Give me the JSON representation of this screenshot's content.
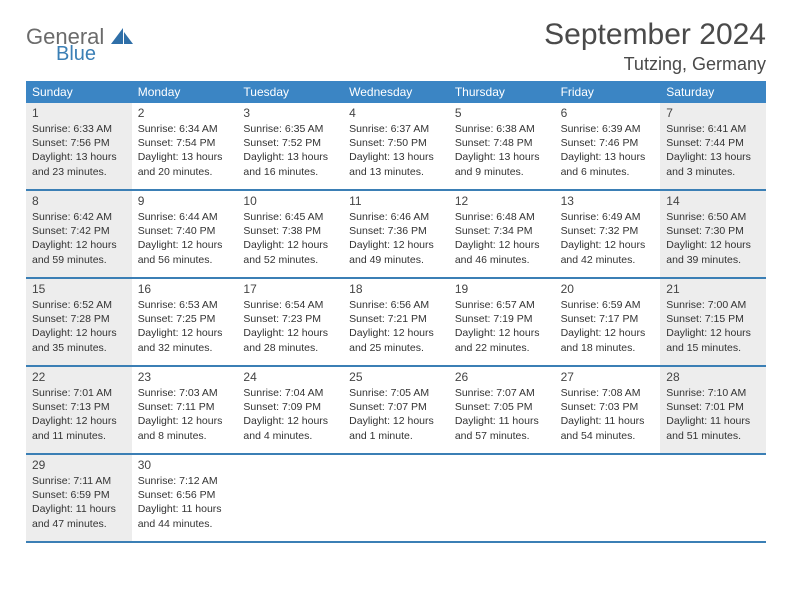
{
  "brand": {
    "general": "General",
    "blue": "Blue"
  },
  "title": {
    "month": "September 2024",
    "location": "Tutzing, Germany"
  },
  "colors": {
    "header_bg": "#3b85c4",
    "rule": "#3b7fb5",
    "shade": "#ededed",
    "text": "#333333"
  },
  "weekdays": [
    "Sunday",
    "Monday",
    "Tuesday",
    "Wednesday",
    "Thursday",
    "Friday",
    "Saturday"
  ],
  "weeks": [
    [
      {
        "day": "1",
        "shade": true,
        "sunrise": "Sunrise: 6:33 AM",
        "sunset": "Sunset: 7:56 PM",
        "daylight": "Daylight: 13 hours and 23 minutes."
      },
      {
        "day": "2",
        "shade": false,
        "sunrise": "Sunrise: 6:34 AM",
        "sunset": "Sunset: 7:54 PM",
        "daylight": "Daylight: 13 hours and 20 minutes."
      },
      {
        "day": "3",
        "shade": false,
        "sunrise": "Sunrise: 6:35 AM",
        "sunset": "Sunset: 7:52 PM",
        "daylight": "Daylight: 13 hours and 16 minutes."
      },
      {
        "day": "4",
        "shade": false,
        "sunrise": "Sunrise: 6:37 AM",
        "sunset": "Sunset: 7:50 PM",
        "daylight": "Daylight: 13 hours and 13 minutes."
      },
      {
        "day": "5",
        "shade": false,
        "sunrise": "Sunrise: 6:38 AM",
        "sunset": "Sunset: 7:48 PM",
        "daylight": "Daylight: 13 hours and 9 minutes."
      },
      {
        "day": "6",
        "shade": false,
        "sunrise": "Sunrise: 6:39 AM",
        "sunset": "Sunset: 7:46 PM",
        "daylight": "Daylight: 13 hours and 6 minutes."
      },
      {
        "day": "7",
        "shade": true,
        "sunrise": "Sunrise: 6:41 AM",
        "sunset": "Sunset: 7:44 PM",
        "daylight": "Daylight: 13 hours and 3 minutes."
      }
    ],
    [
      {
        "day": "8",
        "shade": true,
        "sunrise": "Sunrise: 6:42 AM",
        "sunset": "Sunset: 7:42 PM",
        "daylight": "Daylight: 12 hours and 59 minutes."
      },
      {
        "day": "9",
        "shade": false,
        "sunrise": "Sunrise: 6:44 AM",
        "sunset": "Sunset: 7:40 PM",
        "daylight": "Daylight: 12 hours and 56 minutes."
      },
      {
        "day": "10",
        "shade": false,
        "sunrise": "Sunrise: 6:45 AM",
        "sunset": "Sunset: 7:38 PM",
        "daylight": "Daylight: 12 hours and 52 minutes."
      },
      {
        "day": "11",
        "shade": false,
        "sunrise": "Sunrise: 6:46 AM",
        "sunset": "Sunset: 7:36 PM",
        "daylight": "Daylight: 12 hours and 49 minutes."
      },
      {
        "day": "12",
        "shade": false,
        "sunrise": "Sunrise: 6:48 AM",
        "sunset": "Sunset: 7:34 PM",
        "daylight": "Daylight: 12 hours and 46 minutes."
      },
      {
        "day": "13",
        "shade": false,
        "sunrise": "Sunrise: 6:49 AM",
        "sunset": "Sunset: 7:32 PM",
        "daylight": "Daylight: 12 hours and 42 minutes."
      },
      {
        "day": "14",
        "shade": true,
        "sunrise": "Sunrise: 6:50 AM",
        "sunset": "Sunset: 7:30 PM",
        "daylight": "Daylight: 12 hours and 39 minutes."
      }
    ],
    [
      {
        "day": "15",
        "shade": true,
        "sunrise": "Sunrise: 6:52 AM",
        "sunset": "Sunset: 7:28 PM",
        "daylight": "Daylight: 12 hours and 35 minutes."
      },
      {
        "day": "16",
        "shade": false,
        "sunrise": "Sunrise: 6:53 AM",
        "sunset": "Sunset: 7:25 PM",
        "daylight": "Daylight: 12 hours and 32 minutes."
      },
      {
        "day": "17",
        "shade": false,
        "sunrise": "Sunrise: 6:54 AM",
        "sunset": "Sunset: 7:23 PM",
        "daylight": "Daylight: 12 hours and 28 minutes."
      },
      {
        "day": "18",
        "shade": false,
        "sunrise": "Sunrise: 6:56 AM",
        "sunset": "Sunset: 7:21 PM",
        "daylight": "Daylight: 12 hours and 25 minutes."
      },
      {
        "day": "19",
        "shade": false,
        "sunrise": "Sunrise: 6:57 AM",
        "sunset": "Sunset: 7:19 PM",
        "daylight": "Daylight: 12 hours and 22 minutes."
      },
      {
        "day": "20",
        "shade": false,
        "sunrise": "Sunrise: 6:59 AM",
        "sunset": "Sunset: 7:17 PM",
        "daylight": "Daylight: 12 hours and 18 minutes."
      },
      {
        "day": "21",
        "shade": true,
        "sunrise": "Sunrise: 7:00 AM",
        "sunset": "Sunset: 7:15 PM",
        "daylight": "Daylight: 12 hours and 15 minutes."
      }
    ],
    [
      {
        "day": "22",
        "shade": true,
        "sunrise": "Sunrise: 7:01 AM",
        "sunset": "Sunset: 7:13 PM",
        "daylight": "Daylight: 12 hours and 11 minutes."
      },
      {
        "day": "23",
        "shade": false,
        "sunrise": "Sunrise: 7:03 AM",
        "sunset": "Sunset: 7:11 PM",
        "daylight": "Daylight: 12 hours and 8 minutes."
      },
      {
        "day": "24",
        "shade": false,
        "sunrise": "Sunrise: 7:04 AM",
        "sunset": "Sunset: 7:09 PM",
        "daylight": "Daylight: 12 hours and 4 minutes."
      },
      {
        "day": "25",
        "shade": false,
        "sunrise": "Sunrise: 7:05 AM",
        "sunset": "Sunset: 7:07 PM",
        "daylight": "Daylight: 12 hours and 1 minute."
      },
      {
        "day": "26",
        "shade": false,
        "sunrise": "Sunrise: 7:07 AM",
        "sunset": "Sunset: 7:05 PM",
        "daylight": "Daylight: 11 hours and 57 minutes."
      },
      {
        "day": "27",
        "shade": false,
        "sunrise": "Sunrise: 7:08 AM",
        "sunset": "Sunset: 7:03 PM",
        "daylight": "Daylight: 11 hours and 54 minutes."
      },
      {
        "day": "28",
        "shade": true,
        "sunrise": "Sunrise: 7:10 AM",
        "sunset": "Sunset: 7:01 PM",
        "daylight": "Daylight: 11 hours and 51 minutes."
      }
    ],
    [
      {
        "day": "29",
        "shade": true,
        "sunrise": "Sunrise: 7:11 AM",
        "sunset": "Sunset: 6:59 PM",
        "daylight": "Daylight: 11 hours and 47 minutes."
      },
      {
        "day": "30",
        "shade": false,
        "sunrise": "Sunrise: 7:12 AM",
        "sunset": "Sunset: 6:56 PM",
        "daylight": "Daylight: 11 hours and 44 minutes."
      },
      {
        "day": "",
        "shade": false,
        "sunrise": "",
        "sunset": "",
        "daylight": ""
      },
      {
        "day": "",
        "shade": false,
        "sunrise": "",
        "sunset": "",
        "daylight": ""
      },
      {
        "day": "",
        "shade": false,
        "sunrise": "",
        "sunset": "",
        "daylight": ""
      },
      {
        "day": "",
        "shade": false,
        "sunrise": "",
        "sunset": "",
        "daylight": ""
      },
      {
        "day": "",
        "shade": false,
        "sunrise": "",
        "sunset": "",
        "daylight": ""
      }
    ]
  ]
}
